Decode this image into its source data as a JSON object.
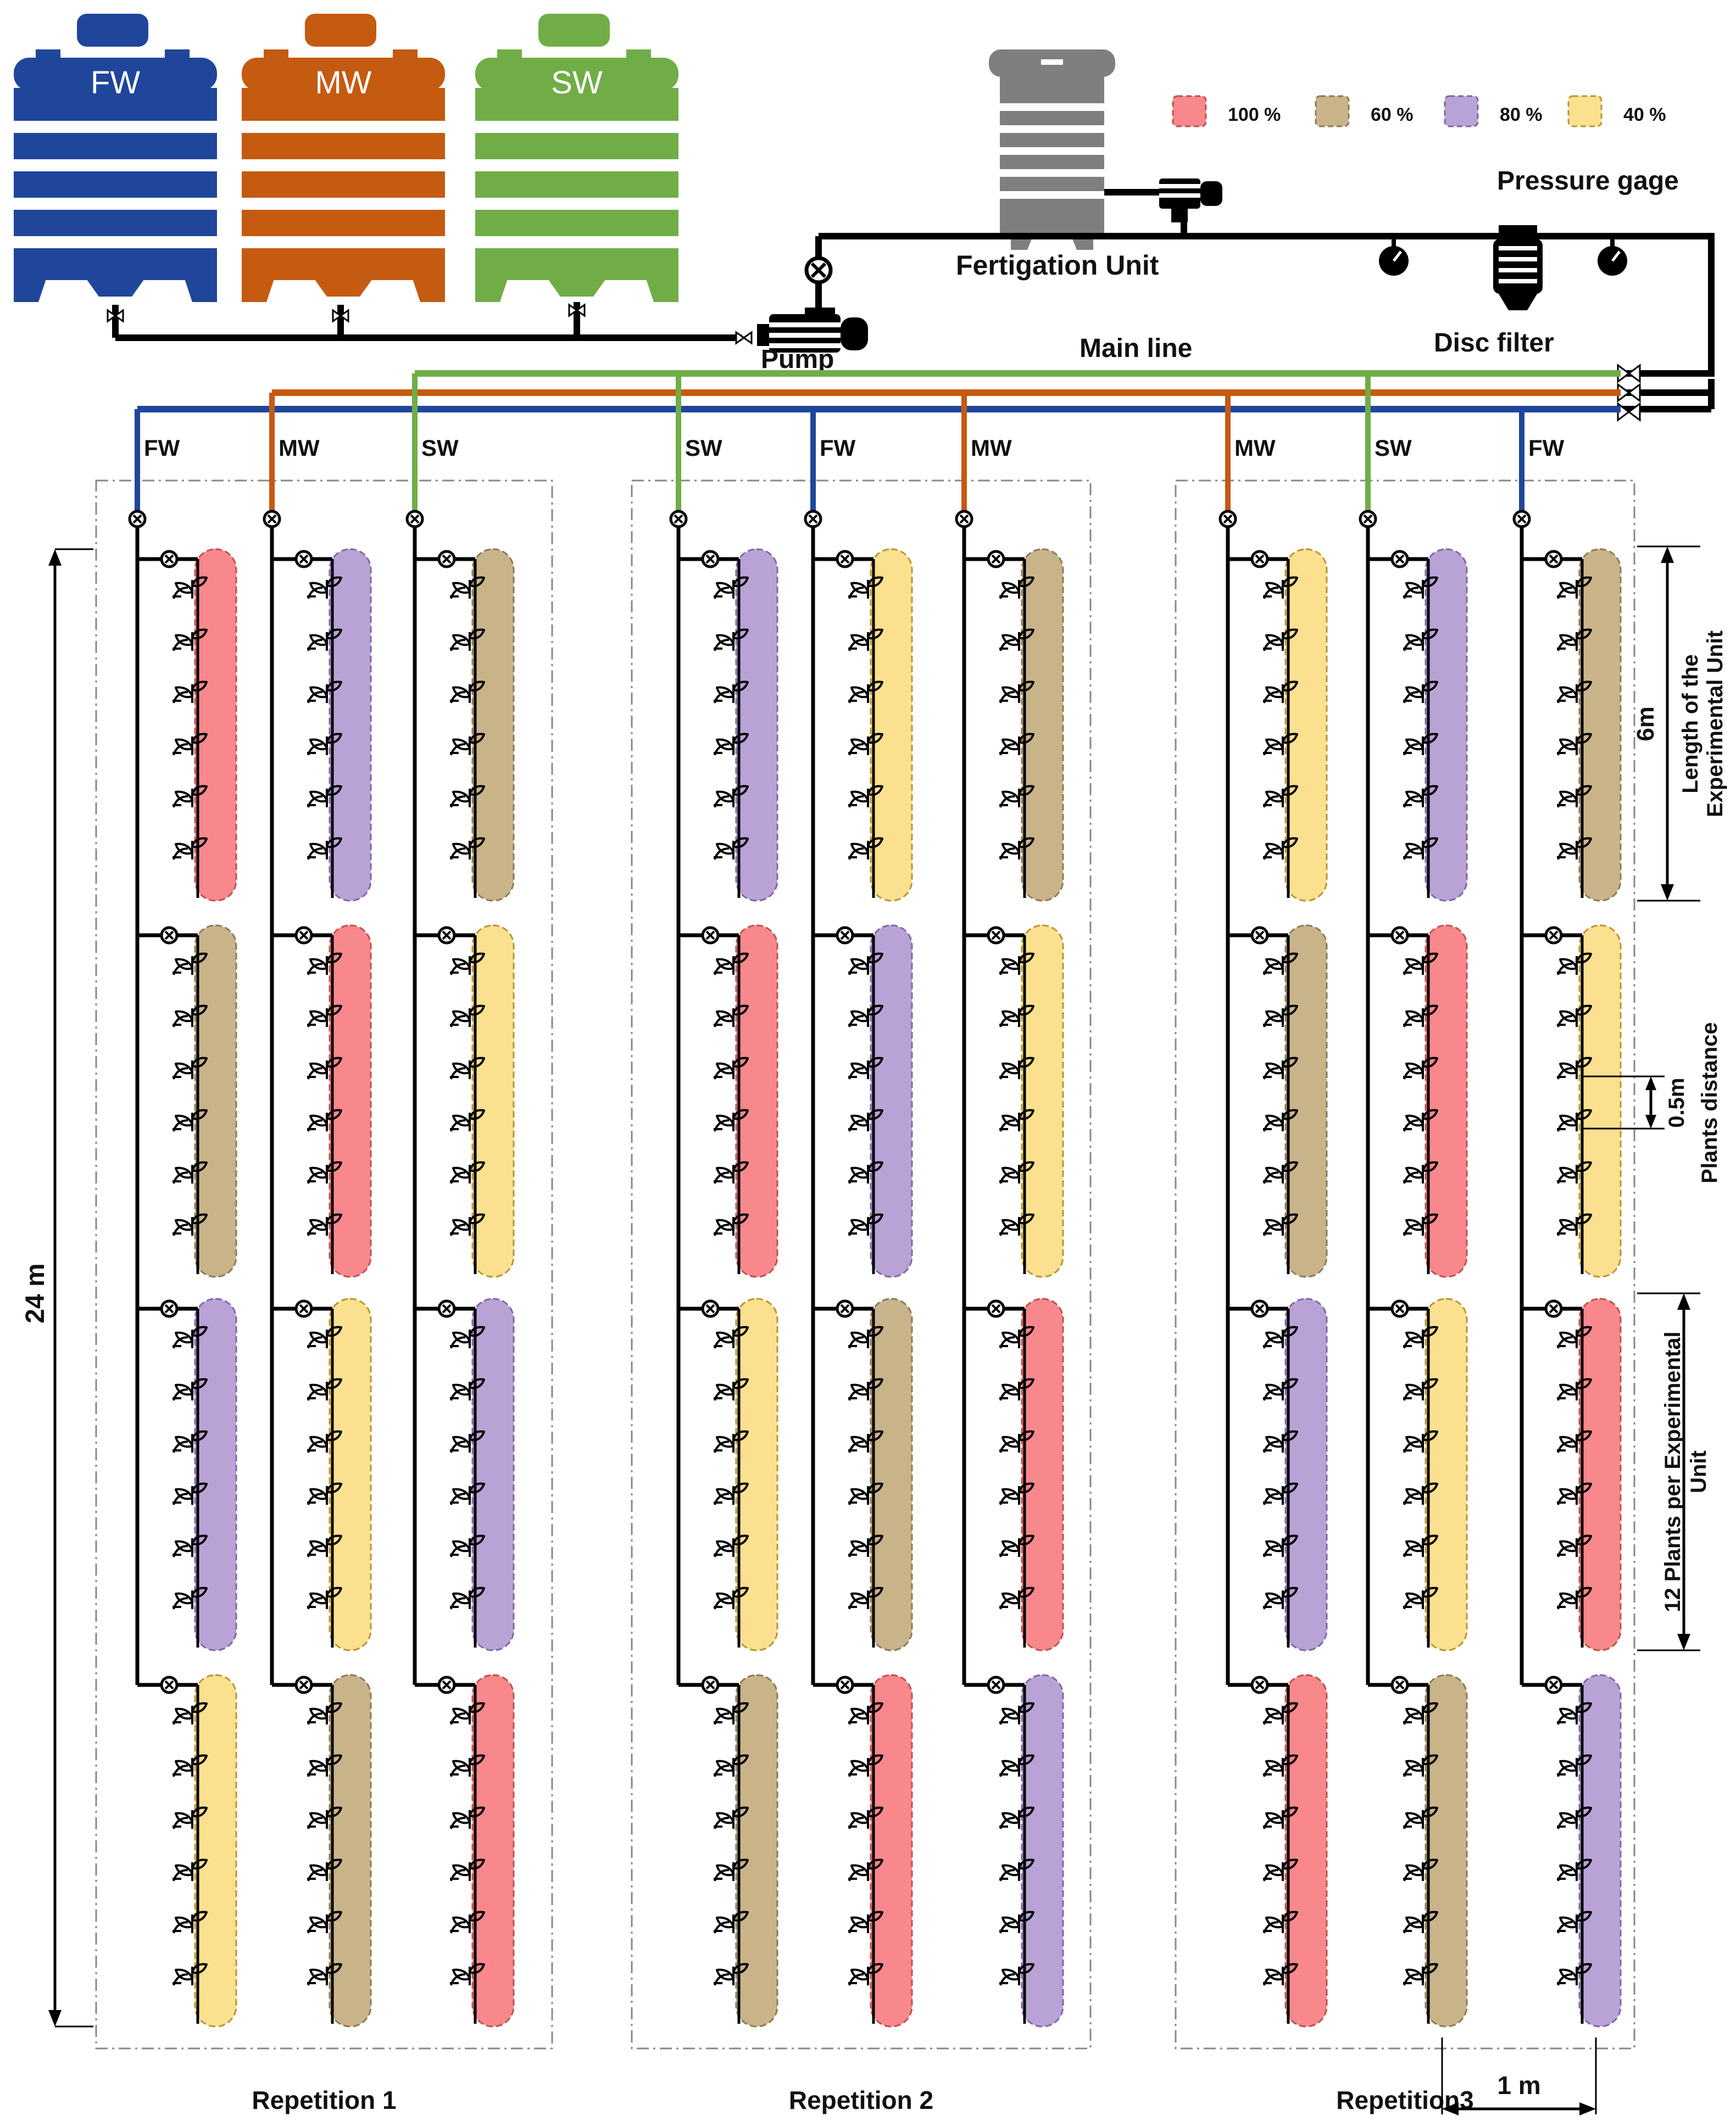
{
  "colors": {
    "fw": "#20469B",
    "mw": "#C55A11",
    "sw": "#70AD47",
    "fertigation_tank": "#7F7F7F",
    "pipe": "#000000"
  },
  "tanks": [
    {
      "key": "fw",
      "label": "FW"
    },
    {
      "key": "mw",
      "label": "MW"
    },
    {
      "key": "sw",
      "label": "SW"
    }
  ],
  "legend": [
    {
      "label": "100 %",
      "fill": "#F8888C",
      "stroke": "#C0504D"
    },
    {
      "label": "60 %",
      "fill": "#C9B48A",
      "stroke": "#8C7A57"
    },
    {
      "label": "80 %",
      "fill": "#B9A3D6",
      "stroke": "#7F66A8"
    },
    {
      "label": "40 %",
      "fill": "#FBE08F",
      "stroke": "#B8962E"
    }
  ],
  "labels": {
    "fertigation_unit": "Fertigation Unit",
    "pressure_gage": "Pressure gage",
    "disc_filter": "Disc filter",
    "pump": "Pump",
    "main_line": "Main line",
    "total_length": "24 m",
    "unit_length_value": "6m",
    "unit_length_caption_1": "Length of the",
    "unit_length_caption_2": "Experimental Unit",
    "plant_distance_value": "0.5m",
    "plant_distance_caption": "Plants distance",
    "plants_per_unit_1": "12 Plants per Experimental",
    "plants_per_unit_2": "Unit",
    "lateral_spacing": "1 m"
  },
  "repetitions": [
    {
      "label": "Repetition 1",
      "lines": [
        {
          "water": "FW",
          "units": [
            "100 %",
            "60 %",
            "80 %",
            "40 %"
          ]
        },
        {
          "water": "MW",
          "units": [
            "80 %",
            "100 %",
            "40 %",
            "60 %"
          ]
        },
        {
          "water": "SW",
          "units": [
            "60 %",
            "40 %",
            "80 %",
            "100 %"
          ]
        }
      ]
    },
    {
      "label": "Repetition 2",
      "lines": [
        {
          "water": "SW",
          "units": [
            "80 %",
            "100 %",
            "40 %",
            "60 %"
          ]
        },
        {
          "water": "FW",
          "units": [
            "40 %",
            "80 %",
            "60 %",
            "100 %"
          ]
        },
        {
          "water": "MW",
          "units": [
            "60 %",
            "40 %",
            "100 %",
            "80 %"
          ]
        }
      ]
    },
    {
      "label": "Repetition3",
      "lines": [
        {
          "water": "MW",
          "units": [
            "40 %",
            "60 %",
            "80 %",
            "100 %"
          ]
        },
        {
          "water": "SW",
          "units": [
            "80 %",
            "100 %",
            "40 %",
            "60 %"
          ]
        },
        {
          "water": "FW",
          "units": [
            "60 %",
            "40 %",
            "100 %",
            "80 %"
          ]
        }
      ]
    }
  ]
}
